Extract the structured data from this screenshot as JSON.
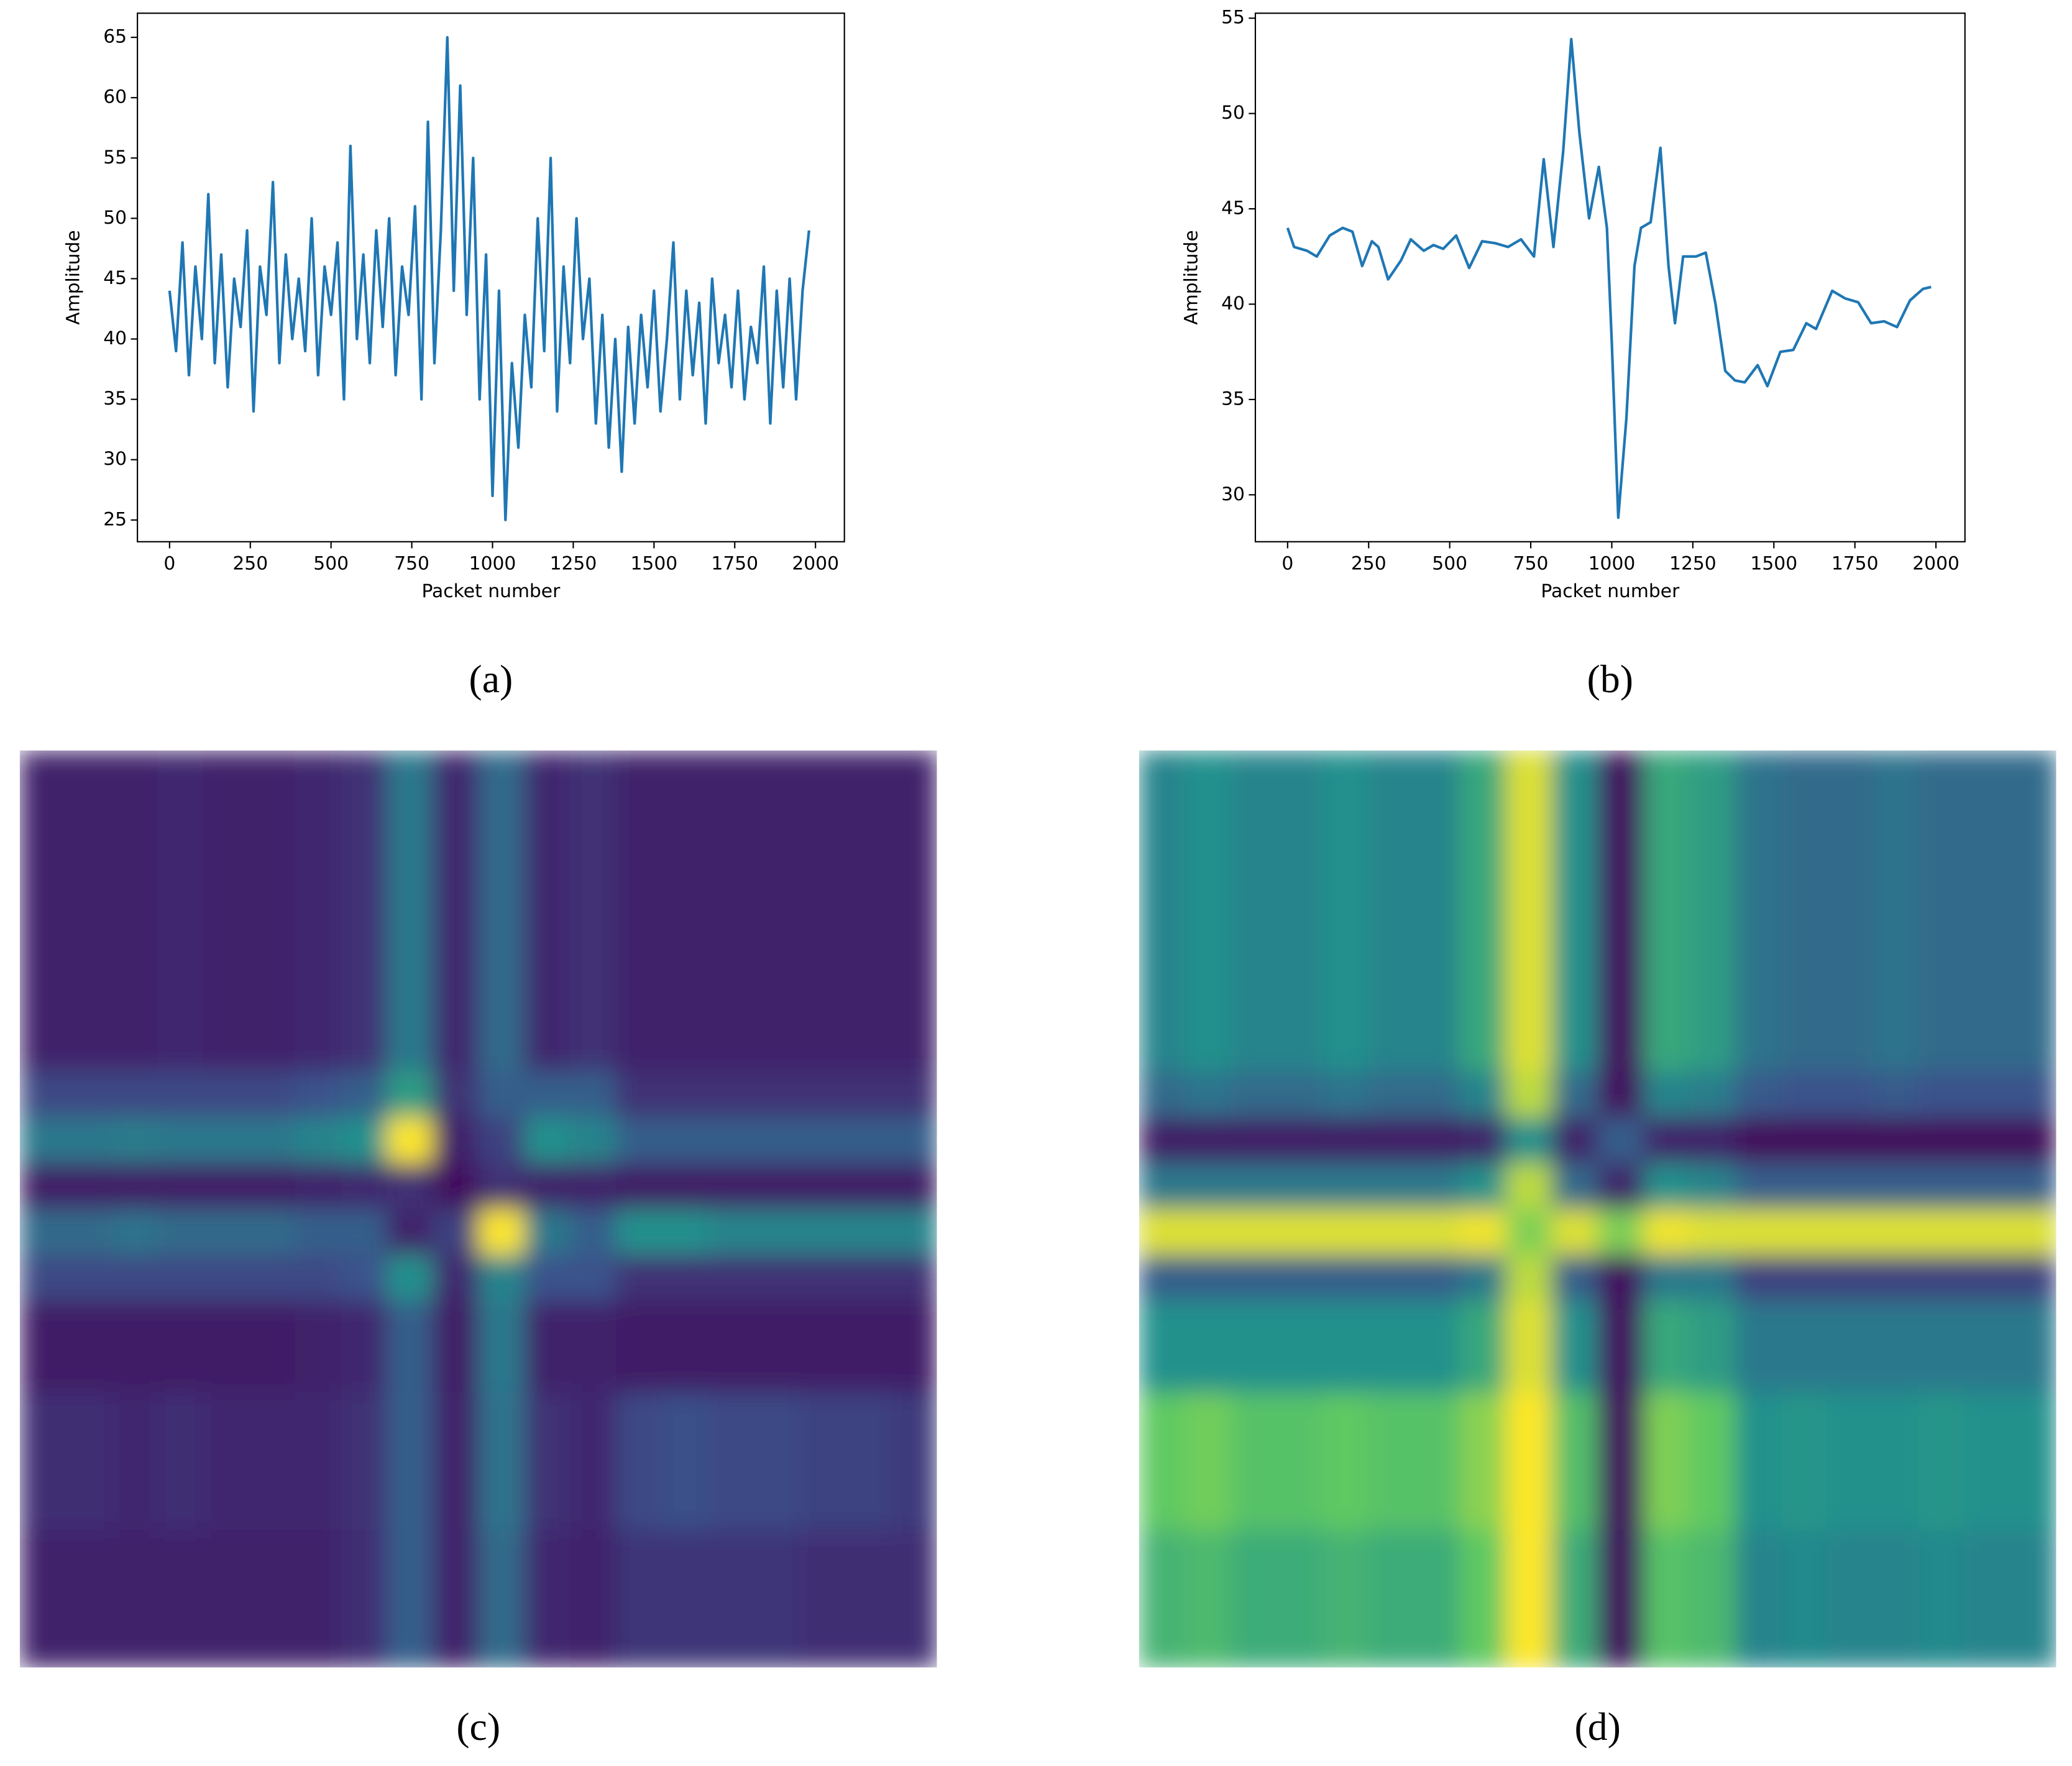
{
  "chart_data": [
    {
      "type": "line",
      "label": "(a)",
      "xlabel": "Packet number",
      "ylabel": "Amplitude",
      "color": "#1f77b4",
      "x": [
        0,
        20,
        40,
        60,
        80,
        100,
        120,
        140,
        160,
        180,
        200,
        220,
        240,
        260,
        280,
        300,
        320,
        340,
        360,
        380,
        400,
        420,
        440,
        460,
        480,
        500,
        520,
        540,
        560,
        580,
        600,
        620,
        640,
        660,
        680,
        700,
        720,
        740,
        760,
        780,
        800,
        820,
        840,
        860,
        880,
        900,
        920,
        940,
        960,
        980,
        1000,
        1020,
        1040,
        1060,
        1080,
        1100,
        1120,
        1140,
        1160,
        1180,
        1200,
        1220,
        1240,
        1260,
        1280,
        1300,
        1320,
        1340,
        1360,
        1380,
        1400,
        1420,
        1440,
        1460,
        1480,
        1500,
        1520,
        1540,
        1560,
        1580,
        1600,
        1620,
        1640,
        1660,
        1680,
        1700,
        1720,
        1740,
        1760,
        1780,
        1800,
        1820,
        1840,
        1860,
        1880,
        1900,
        1920,
        1940,
        1960,
        1980
      ],
      "values": [
        44,
        39,
        48,
        37,
        46,
        40,
        52,
        38,
        47,
        36,
        45,
        41,
        49,
        34,
        46,
        42,
        53,
        38,
        47,
        40,
        45,
        39,
        50,
        37,
        46,
        42,
        48,
        35,
        56,
        40,
        47,
        38,
        49,
        41,
        50,
        37,
        46,
        42,
        51,
        35,
        58,
        38,
        49,
        65,
        44,
        61,
        42,
        55,
        35,
        47,
        27,
        44,
        25,
        38,
        31,
        42,
        36,
        50,
        39,
        55,
        34,
        46,
        38,
        50,
        40,
        45,
        33,
        42,
        31,
        40,
        29,
        41,
        33,
        42,
        36,
        44,
        34,
        40,
        48,
        35,
        44,
        37,
        43,
        33,
        45,
        38,
        42,
        36,
        44,
        35,
        41,
        38,
        46,
        33,
        44,
        36,
        45,
        35,
        44,
        49
      ],
      "xlim": [
        -99.5,
        2089.5
      ],
      "ylim": [
        23.2,
        67.0
      ],
      "xticks": [
        0,
        250,
        500,
        750,
        1000,
        1250,
        1500,
        1750,
        2000
      ],
      "yticks": [
        25,
        30,
        35,
        40,
        45,
        50,
        55,
        60,
        65
      ]
    },
    {
      "type": "line",
      "label": "(b)",
      "xlabel": "Packet number",
      "ylabel": "Amplitude",
      "color": "#1f77b4",
      "x": [
        0,
        20,
        60,
        90,
        130,
        170,
        200,
        230,
        260,
        280,
        310,
        350,
        380,
        420,
        450,
        480,
        520,
        560,
        600,
        640,
        680,
        720,
        760,
        790,
        820,
        850,
        875,
        900,
        930,
        960,
        985,
        1000,
        1020,
        1045,
        1070,
        1090,
        1120,
        1150,
        1175,
        1195,
        1220,
        1260,
        1290,
        1320,
        1350,
        1380,
        1410,
        1450,
        1480,
        1520,
        1560,
        1600,
        1630,
        1680,
        1720,
        1760,
        1800,
        1840,
        1880,
        1920,
        1960,
        1985
      ],
      "values": [
        44.0,
        43.0,
        42.8,
        42.5,
        43.6,
        44.0,
        43.8,
        42.0,
        43.3,
        43.0,
        41.3,
        42.3,
        43.4,
        42.8,
        43.1,
        42.9,
        43.6,
        41.9,
        43.3,
        43.2,
        43.0,
        43.4,
        42.5,
        47.6,
        43.0,
        48.0,
        53.9,
        49.0,
        44.5,
        47.2,
        44.0,
        38.0,
        28.8,
        34.0,
        42.0,
        44.0,
        44.3,
        48.2,
        42.0,
        39.0,
        42.5,
        42.5,
        42.7,
        40.0,
        36.5,
        36.0,
        35.9,
        36.8,
        35.7,
        37.5,
        37.6,
        39.0,
        38.7,
        40.7,
        40.3,
        40.1,
        39.0,
        39.1,
        38.8,
        40.2,
        40.8,
        40.9
      ],
      "xlim": [
        -99.5,
        2089.5
      ],
      "ylim": [
        27.54,
        55.26
      ],
      "xticks": [
        0,
        250,
        500,
        750,
        1000,
        1250,
        1500,
        1750,
        2000
      ],
      "yticks": [
        30,
        35,
        40,
        45,
        50,
        55
      ]
    },
    {
      "type": "heatmap",
      "label": "(c)",
      "colormap": "viridis",
      "zlim": [
        0,
        1
      ],
      "z": [
        [
          0.1,
          0.1,
          0.1,
          0.12,
          0.1,
          0.1,
          0.12,
          0.15,
          0.4,
          0.12,
          0.35,
          0.12,
          0.15,
          0.1,
          0.1,
          0.1,
          0.1,
          0.1,
          0.1,
          0.1
        ],
        [
          0.1,
          0.1,
          0.1,
          0.12,
          0.1,
          0.1,
          0.12,
          0.15,
          0.4,
          0.12,
          0.35,
          0.12,
          0.15,
          0.1,
          0.1,
          0.1,
          0.1,
          0.1,
          0.1,
          0.1
        ],
        [
          0.1,
          0.1,
          0.1,
          0.12,
          0.1,
          0.1,
          0.12,
          0.15,
          0.4,
          0.12,
          0.35,
          0.12,
          0.15,
          0.1,
          0.1,
          0.1,
          0.1,
          0.1,
          0.1,
          0.1
        ],
        [
          0.1,
          0.1,
          0.1,
          0.12,
          0.1,
          0.1,
          0.12,
          0.15,
          0.4,
          0.12,
          0.35,
          0.12,
          0.15,
          0.1,
          0.1,
          0.1,
          0.1,
          0.1,
          0.1,
          0.1
        ],
        [
          0.1,
          0.1,
          0.1,
          0.12,
          0.1,
          0.1,
          0.12,
          0.15,
          0.4,
          0.12,
          0.35,
          0.12,
          0.15,
          0.1,
          0.1,
          0.1,
          0.1,
          0.1,
          0.1,
          0.1
        ],
        [
          0.1,
          0.1,
          0.1,
          0.12,
          0.1,
          0.1,
          0.12,
          0.15,
          0.4,
          0.12,
          0.35,
          0.12,
          0.15,
          0.1,
          0.1,
          0.1,
          0.1,
          0.1,
          0.1,
          0.1
        ],
        [
          0.1,
          0.1,
          0.1,
          0.12,
          0.1,
          0.1,
          0.12,
          0.15,
          0.4,
          0.12,
          0.35,
          0.12,
          0.15,
          0.1,
          0.1,
          0.1,
          0.1,
          0.1,
          0.1,
          0.1
        ],
        [
          0.22,
          0.22,
          0.22,
          0.22,
          0.22,
          0.22,
          0.25,
          0.3,
          0.55,
          0.15,
          0.3,
          0.3,
          0.3,
          0.15,
          0.15,
          0.15,
          0.15,
          0.15,
          0.15,
          0.15
        ],
        [
          0.4,
          0.4,
          0.42,
          0.4,
          0.4,
          0.4,
          0.45,
          0.5,
          1.0,
          0.1,
          0.2,
          0.5,
          0.45,
          0.3,
          0.3,
          0.3,
          0.3,
          0.3,
          0.3,
          0.3
        ],
        [
          0.08,
          0.08,
          0.08,
          0.08,
          0.08,
          0.08,
          0.1,
          0.12,
          0.15,
          0.05,
          0.15,
          0.1,
          0.1,
          0.08,
          0.08,
          0.08,
          0.08,
          0.08,
          0.08,
          0.08
        ],
        [
          0.35,
          0.35,
          0.38,
          0.35,
          0.35,
          0.35,
          0.3,
          0.3,
          0.1,
          0.2,
          1.0,
          0.4,
          0.3,
          0.5,
          0.5,
          0.45,
          0.45,
          0.45,
          0.45,
          0.45
        ],
        [
          0.22,
          0.22,
          0.22,
          0.22,
          0.22,
          0.22,
          0.22,
          0.25,
          0.5,
          0.12,
          0.45,
          0.25,
          0.25,
          0.15,
          0.15,
          0.15,
          0.15,
          0.15,
          0.15,
          0.15
        ],
        [
          0.08,
          0.08,
          0.08,
          0.08,
          0.08,
          0.08,
          0.1,
          0.12,
          0.3,
          0.08,
          0.4,
          0.1,
          0.1,
          0.08,
          0.08,
          0.08,
          0.08,
          0.08,
          0.08,
          0.08
        ],
        [
          0.08,
          0.08,
          0.08,
          0.08,
          0.08,
          0.08,
          0.1,
          0.12,
          0.3,
          0.08,
          0.4,
          0.1,
          0.1,
          0.08,
          0.08,
          0.08,
          0.08,
          0.08,
          0.08,
          0.08
        ],
        [
          0.14,
          0.14,
          0.12,
          0.14,
          0.12,
          0.12,
          0.12,
          0.15,
          0.3,
          0.1,
          0.38,
          0.15,
          0.12,
          0.22,
          0.24,
          0.22,
          0.22,
          0.2,
          0.2,
          0.18
        ],
        [
          0.14,
          0.14,
          0.12,
          0.14,
          0.12,
          0.12,
          0.12,
          0.15,
          0.3,
          0.1,
          0.38,
          0.15,
          0.12,
          0.22,
          0.24,
          0.22,
          0.22,
          0.2,
          0.2,
          0.18
        ],
        [
          0.14,
          0.14,
          0.12,
          0.14,
          0.12,
          0.12,
          0.12,
          0.15,
          0.3,
          0.1,
          0.38,
          0.15,
          0.12,
          0.22,
          0.24,
          0.22,
          0.22,
          0.2,
          0.2,
          0.18
        ],
        [
          0.1,
          0.1,
          0.1,
          0.1,
          0.1,
          0.1,
          0.1,
          0.14,
          0.3,
          0.1,
          0.35,
          0.12,
          0.1,
          0.16,
          0.16,
          0.16,
          0.16,
          0.14,
          0.14,
          0.14
        ],
        [
          0.1,
          0.1,
          0.1,
          0.1,
          0.1,
          0.1,
          0.1,
          0.14,
          0.3,
          0.1,
          0.35,
          0.12,
          0.1,
          0.16,
          0.16,
          0.16,
          0.16,
          0.14,
          0.14,
          0.14
        ],
        [
          0.1,
          0.1,
          0.1,
          0.1,
          0.1,
          0.1,
          0.1,
          0.14,
          0.3,
          0.1,
          0.35,
          0.12,
          0.1,
          0.16,
          0.16,
          0.16,
          0.16,
          0.14,
          0.14,
          0.14
        ]
      ]
    },
    {
      "type": "heatmap",
      "label": "(d)",
      "colormap": "viridis",
      "zlim": [
        0,
        1
      ],
      "z": [
        [
          0.45,
          0.5,
          0.45,
          0.45,
          0.5,
          0.45,
          0.45,
          0.6,
          0.95,
          0.5,
          0.05,
          0.6,
          0.55,
          0.38,
          0.35,
          0.35,
          0.38,
          0.35,
          0.35,
          0.35
        ],
        [
          0.45,
          0.5,
          0.45,
          0.45,
          0.5,
          0.45,
          0.45,
          0.6,
          0.95,
          0.5,
          0.05,
          0.6,
          0.55,
          0.38,
          0.35,
          0.35,
          0.38,
          0.35,
          0.35,
          0.35
        ],
        [
          0.45,
          0.5,
          0.45,
          0.45,
          0.5,
          0.45,
          0.45,
          0.6,
          0.95,
          0.5,
          0.05,
          0.6,
          0.55,
          0.38,
          0.35,
          0.35,
          0.38,
          0.35,
          0.35,
          0.35
        ],
        [
          0.45,
          0.5,
          0.45,
          0.45,
          0.5,
          0.45,
          0.45,
          0.6,
          0.95,
          0.5,
          0.05,
          0.6,
          0.55,
          0.38,
          0.35,
          0.35,
          0.38,
          0.35,
          0.35,
          0.35
        ],
        [
          0.45,
          0.5,
          0.45,
          0.45,
          0.5,
          0.45,
          0.45,
          0.6,
          0.95,
          0.5,
          0.05,
          0.6,
          0.55,
          0.38,
          0.35,
          0.35,
          0.38,
          0.35,
          0.35,
          0.35
        ],
        [
          0.45,
          0.5,
          0.45,
          0.45,
          0.5,
          0.45,
          0.45,
          0.6,
          0.95,
          0.5,
          0.05,
          0.6,
          0.55,
          0.38,
          0.35,
          0.35,
          0.38,
          0.35,
          0.35,
          0.35
        ],
        [
          0.45,
          0.5,
          0.45,
          0.45,
          0.5,
          0.45,
          0.45,
          0.6,
          0.95,
          0.5,
          0.05,
          0.6,
          0.55,
          0.38,
          0.35,
          0.35,
          0.38,
          0.35,
          0.35,
          0.35
        ],
        [
          0.35,
          0.38,
          0.35,
          0.35,
          0.38,
          0.35,
          0.35,
          0.45,
          0.9,
          0.35,
          0.05,
          0.45,
          0.42,
          0.28,
          0.25,
          0.25,
          0.28,
          0.25,
          0.25,
          0.25
        ],
        [
          0.08,
          0.08,
          0.08,
          0.08,
          0.08,
          0.08,
          0.08,
          0.1,
          0.5,
          0.1,
          0.3,
          0.1,
          0.1,
          0.03,
          0.03,
          0.03,
          0.03,
          0.03,
          0.03,
          0.03
        ],
        [
          0.4,
          0.4,
          0.4,
          0.4,
          0.4,
          0.4,
          0.4,
          0.5,
          0.9,
          0.35,
          0.1,
          0.5,
          0.45,
          0.3,
          0.3,
          0.3,
          0.3,
          0.3,
          0.3,
          0.3
        ],
        [
          0.95,
          0.95,
          0.95,
          0.95,
          0.95,
          0.95,
          0.95,
          0.98,
          0.8,
          0.95,
          0.8,
          0.98,
          0.95,
          0.95,
          0.95,
          0.95,
          0.95,
          0.95,
          0.95,
          0.95
        ],
        [
          0.3,
          0.3,
          0.3,
          0.3,
          0.3,
          0.3,
          0.3,
          0.4,
          0.9,
          0.3,
          0.05,
          0.4,
          0.4,
          0.2,
          0.2,
          0.2,
          0.2,
          0.2,
          0.2,
          0.2
        ],
        [
          0.5,
          0.5,
          0.5,
          0.5,
          0.5,
          0.5,
          0.5,
          0.6,
          0.95,
          0.5,
          0.05,
          0.6,
          0.55,
          0.4,
          0.4,
          0.4,
          0.4,
          0.4,
          0.4,
          0.4
        ],
        [
          0.5,
          0.5,
          0.5,
          0.5,
          0.5,
          0.5,
          0.5,
          0.6,
          0.95,
          0.5,
          0.05,
          0.6,
          0.55,
          0.4,
          0.4,
          0.4,
          0.4,
          0.4,
          0.4,
          0.4
        ],
        [
          0.75,
          0.78,
          0.72,
          0.72,
          0.75,
          0.72,
          0.72,
          0.82,
          1.0,
          0.7,
          0.05,
          0.8,
          0.75,
          0.5,
          0.52,
          0.5,
          0.5,
          0.52,
          0.5,
          0.5
        ],
        [
          0.75,
          0.78,
          0.72,
          0.72,
          0.75,
          0.72,
          0.72,
          0.82,
          1.0,
          0.7,
          0.05,
          0.8,
          0.75,
          0.5,
          0.52,
          0.5,
          0.5,
          0.52,
          0.5,
          0.5
        ],
        [
          0.75,
          0.78,
          0.72,
          0.72,
          0.75,
          0.72,
          0.72,
          0.82,
          1.0,
          0.7,
          0.05,
          0.8,
          0.75,
          0.5,
          0.52,
          0.5,
          0.5,
          0.52,
          0.5,
          0.5
        ],
        [
          0.65,
          0.68,
          0.62,
          0.62,
          0.65,
          0.62,
          0.62,
          0.75,
          1.0,
          0.62,
          0.05,
          0.72,
          0.68,
          0.45,
          0.47,
          0.45,
          0.45,
          0.47,
          0.45,
          0.45
        ],
        [
          0.65,
          0.68,
          0.62,
          0.62,
          0.65,
          0.62,
          0.62,
          0.75,
          1.0,
          0.62,
          0.05,
          0.72,
          0.68,
          0.45,
          0.47,
          0.45,
          0.45,
          0.47,
          0.45,
          0.45
        ],
        [
          0.65,
          0.68,
          0.62,
          0.62,
          0.65,
          0.62,
          0.62,
          0.75,
          1.0,
          0.62,
          0.05,
          0.72,
          0.68,
          0.45,
          0.47,
          0.45,
          0.45,
          0.47,
          0.45,
          0.45
        ]
      ]
    }
  ]
}
